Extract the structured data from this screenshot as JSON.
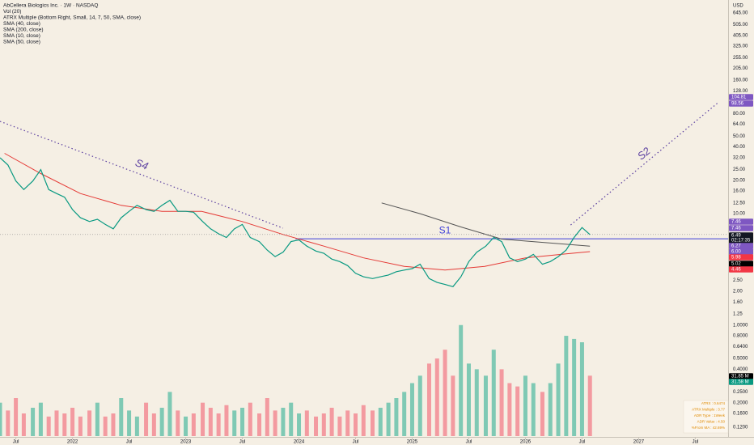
{
  "legend": [
    "AbCellera Biologics Inc. · 1W · NASDAQ",
    "Vol (20)",
    "ATRX Multiple (Bottom Right, Small, 14, 7, 50, SMA, close)",
    "SMA (40, close)",
    "SMA (200, close)",
    "SMA (10, close)",
    "SMA (50, close)"
  ],
  "currency": "USD",
  "chart_data": [
    {
      "type": "line",
      "log": true,
      "color": "#089981",
      "xlim": [
        2021.36,
        2027.79
      ],
      "ylim": [
        1.11,
        844
      ],
      "xticks": [
        {
          "value": 2021.5,
          "label": "Jul"
        },
        2022,
        {
          "value": 2022.5,
          "label": "Jul"
        },
        2023,
        {
          "value": 2023.5,
          "label": "Jul"
        },
        2024,
        {
          "value": 2024.5,
          "label": "Jul"
        },
        2025,
        {
          "value": 2025.5,
          "label": "Jul"
        },
        2026,
        {
          "value": 2026.5,
          "label": "Jul"
        },
        2027,
        {
          "value": 2027.5,
          "label": "Jul"
        }
      ],
      "yticks": [
        {
          "value": 645,
          "label": "645.00"
        },
        {
          "value": 505,
          "label": "505.00"
        },
        {
          "value": 405,
          "label": "405.00"
        },
        {
          "value": 325,
          "label": "325.00"
        },
        {
          "value": 255,
          "label": "255.00"
        },
        {
          "value": 205,
          "label": "205.00"
        },
        {
          "value": 160,
          "label": "160.00"
        },
        {
          "value": 128,
          "label": "128.00"
        },
        {
          "value": 80,
          "label": "80.00"
        },
        {
          "value": 64,
          "label": "64.00"
        },
        {
          "value": 50,
          "label": "50.00"
        },
        {
          "value": 40,
          "label": "40.00"
        },
        {
          "value": 32,
          "label": "32.00"
        },
        {
          "value": 25,
          "label": "25.00"
        },
        {
          "value": 20,
          "label": "20.00"
        },
        {
          "value": 16,
          "label": "16.00"
        },
        {
          "value": 12.5,
          "label": "12.50"
        },
        {
          "value": 10,
          "label": "10.00"
        },
        {
          "value": 2.5,
          "label": "2.50"
        },
        {
          "value": 2,
          "label": "2.00"
        },
        {
          "value": 1.6,
          "label": "1.60"
        },
        {
          "value": 1.25,
          "label": "1.25"
        }
      ],
      "x": [
        2021.36,
        2021.43,
        2021.5,
        2021.57,
        2021.65,
        2021.72,
        2021.79,
        2021.86,
        2021.93,
        2022.0,
        2022.07,
        2022.15,
        2022.22,
        2022.29,
        2022.36,
        2022.43,
        2022.5,
        2022.57,
        2022.65,
        2022.72,
        2022.79,
        2022.86,
        2022.93,
        2023.0,
        2023.07,
        2023.15,
        2023.22,
        2023.29,
        2023.36,
        2023.43,
        2023.5,
        2023.57,
        2023.65,
        2023.72,
        2023.79,
        2023.86,
        2023.93,
        2024.0,
        2024.07,
        2024.15,
        2024.22,
        2024.29,
        2024.36,
        2024.43,
        2024.5,
        2024.57,
        2024.65,
        2024.72,
        2024.79,
        2024.86,
        2024.93,
        2025.0,
        2025.07,
        2025.15,
        2025.22,
        2025.29,
        2025.36,
        2025.43,
        2025.5,
        2025.57,
        2025.65,
        2025.72,
        2025.79,
        2025.86,
        2025.93,
        2026.0,
        2026.07,
        2026.15,
        2026.22,
        2026.29,
        2026.36,
        2026.43,
        2026.5,
        2026.57
      ],
      "values": [
        31.9,
        27.5,
        19.7,
        16.5,
        19.7,
        25,
        16.5,
        15.2,
        14.1,
        10.9,
        9.2,
        8.5,
        8.9,
        8.0,
        7.3,
        9.2,
        10.5,
        11.9,
        10.9,
        10.5,
        11.9,
        13.2,
        10.5,
        10.5,
        10.3,
        8.5,
        7.3,
        6.6,
        6.1,
        7.3,
        8.0,
        6.1,
        5.6,
        4.7,
        4.1,
        4.5,
        5.6,
        5.8,
        5.1,
        4.6,
        4.4,
        3.9,
        3.7,
        3.4,
        2.9,
        2.7,
        2.6,
        2.7,
        2.8,
        3.0,
        3.1,
        3.2,
        3.5,
        2.6,
        2.4,
        2.3,
        2.2,
        2.7,
        3.7,
        4.5,
        5.1,
        6.1,
        5.6,
        4.0,
        3.7,
        3.9,
        4.3,
        3.5,
        3.7,
        4.1,
        4.7,
        6.1,
        7.5,
        6.49
      ],
      "series": [
        {
          "color": "#e53935",
          "x": [
            2021.4,
            2021.72,
            2022.07,
            2022.43,
            2022.79,
            2023.14,
            2023.5,
            2023.86,
            2024.22,
            2024.57,
            2024.93,
            2025.29,
            2025.64,
            2026.0,
            2026.36,
            2026.57
          ],
          "values": [
            35,
            23,
            15.2,
            11.9,
            10.5,
            10.5,
            8.5,
            6.5,
            5.1,
            4.0,
            3.35,
            3.1,
            3.35,
            4.0,
            4.35,
            4.55
          ]
        },
        {
          "color": "#555555",
          "x": [
            2024.73,
            2025.07,
            2025.43,
            2025.79,
            2026.36,
            2026.57
          ],
          "values": [
            12.5,
            10,
            7.6,
            5.9,
            5.3,
            5.1
          ]
        }
      ],
      "levels": [
        {
          "label": "S1",
          "x": 2023.97,
          "value": 5.94,
          "color": "#3f3fd8"
        }
      ],
      "trendlines": [
        {
          "label": "S4",
          "color": "#5b3fa0",
          "x": [
            2021.36,
            2023.86
          ],
          "values": [
            68,
            7.4
          ]
        },
        {
          "label": "S2",
          "color": "#5b3fa0",
          "x": [
            2026.4,
            2027.7
          ],
          "values": [
            7.9,
            100
          ]
        }
      ],
      "badges": [
        {
          "label": "104.81",
          "color": "#7e57c2"
        },
        {
          "label": "98.56",
          "color": "#7e57c2"
        },
        {
          "label": "7.46",
          "color": "#7e57c2"
        },
        {
          "label": "7.46",
          "color": "#7e57c2"
        },
        {
          "label": "6.49",
          "color": "#131722"
        },
        {
          "label": "02:17:35",
          "color": "#131722"
        },
        {
          "label": "6.27",
          "color": "#7e57c2"
        },
        {
          "label": "6.00",
          "color": "#7e57c2"
        },
        {
          "label": "5.98",
          "color": "#f23645"
        },
        {
          "label": "5.02",
          "color": "#000000"
        },
        {
          "label": "4.46",
          "color": "#f23645"
        }
      ]
    },
    {
      "type": "bar",
      "log": true,
      "ylim": [
        0.1,
        1.12
      ],
      "up_color": "#7fc9b4",
      "down_color": "#f39aa0",
      "yticks": [
        {
          "value": 1,
          "label": "1.0000"
        },
        {
          "value": 0.8,
          "label": "0.8000"
        },
        {
          "value": 0.64,
          "label": "0.6400"
        },
        {
          "value": 0.5,
          "label": "0.5000"
        },
        {
          "value": 0.4,
          "label": "0.4000"
        },
        {
          "value": 0.25,
          "label": "0.2500"
        },
        {
          "value": 0.2,
          "label": "0.2000"
        },
        {
          "value": 0.16,
          "label": "0.1600"
        },
        {
          "value": 0.12,
          "label": "0.1200"
        }
      ],
      "values": [
        0.2,
        0.17,
        0.22,
        0.16,
        0.18,
        0.2,
        0.15,
        0.17,
        0.16,
        0.18,
        0.15,
        0.17,
        0.2,
        0.15,
        0.16,
        0.22,
        0.17,
        0.15,
        0.2,
        0.16,
        0.18,
        0.25,
        0.17,
        0.15,
        0.16,
        0.2,
        0.18,
        0.16,
        0.19,
        0.17,
        0.18,
        0.2,
        0.16,
        0.22,
        0.17,
        0.18,
        0.2,
        0.16,
        0.17,
        0.15,
        0.16,
        0.18,
        0.15,
        0.17,
        0.16,
        0.19,
        0.17,
        0.18,
        0.2,
        0.22,
        0.25,
        0.3,
        0.35,
        0.45,
        0.5,
        0.6,
        0.35,
        1.0,
        0.45,
        0.4,
        0.35,
        0.6,
        0.4,
        0.3,
        0.28,
        0.35,
        0.3,
        0.25,
        0.3,
        0.45,
        0.8,
        0.75,
        0.7,
        0.35
      ],
      "badges": [
        {
          "label": "31.85 M",
          "color": "#000000"
        },
        {
          "label": "31.58 M",
          "color": "#089981"
        }
      ]
    }
  ],
  "info_table": [
    "ATRX : 0.6474",
    "ATRX Multiple : 3.77",
    "ADR Type : 1Week",
    "ADR Value : 4.50",
    "%From MA : 42.69%"
  ]
}
